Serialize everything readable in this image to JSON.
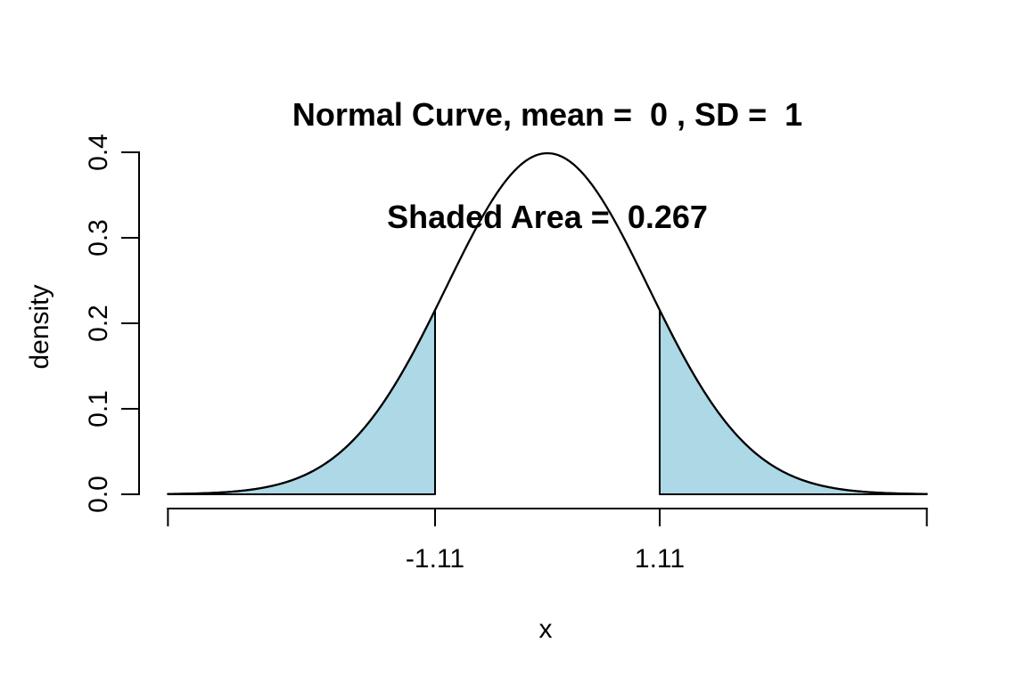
{
  "chart_data": {
    "type": "area",
    "title_line1": "Normal Curve, mean =  0 , SD =  1",
    "title_line2": "Shaded Area =  0.267",
    "xlabel": "x",
    "ylabel": "density",
    "distribution": "normal",
    "mean": 0,
    "sd": 1,
    "peak_density": 0.3989,
    "shade": {
      "region": "two-tails",
      "lower_cut": -1.11,
      "upper_cut": 1.11,
      "density_at_cut": 0.2155,
      "area": 0.267
    },
    "x_range": [
      -3.75,
      3.75
    ],
    "y_range": [
      0,
      0.4
    ],
    "x_ticks": [
      {
        "value": -1.11,
        "label": "-1.11"
      },
      {
        "value": 1.11,
        "label": "1.11"
      }
    ],
    "x_axis_end_ticks_labeled": false,
    "y_ticks": [
      {
        "value": 0.0,
        "label": "0.0"
      },
      {
        "value": 0.1,
        "label": "0.1"
      },
      {
        "value": 0.2,
        "label": "0.2"
      },
      {
        "value": 0.3,
        "label": "0.3"
      },
      {
        "value": 0.4,
        "label": "0.4"
      }
    ],
    "grid": false,
    "legend": false,
    "colors": {
      "curve": "#000000",
      "shade_fill": "#ADD8E6",
      "shade_border": "#000000",
      "axis": "#000000",
      "text": "#000000",
      "background": "#FFFFFF"
    }
  }
}
